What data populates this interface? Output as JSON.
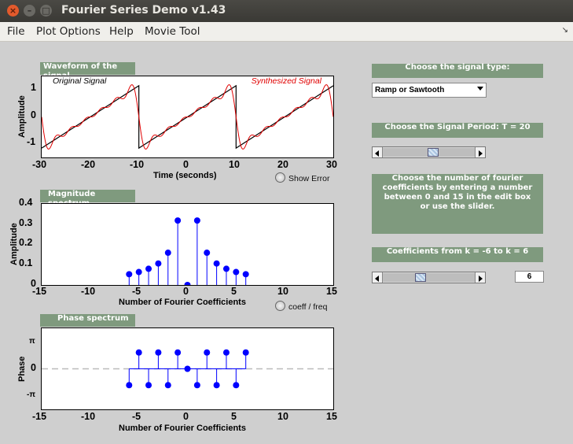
{
  "window": {
    "title": "Fourier Series Demo v1.43"
  },
  "menus": [
    "File",
    "Plot Options",
    "Help",
    "Movie Tool"
  ],
  "waveform": {
    "title": "Waveform of the signal",
    "legend_original": "Original Signal",
    "legend_synth": "Synthesized Signal",
    "xlabel": "Time (seconds)",
    "ylabel": "Amplitude",
    "xticks": [
      "-30",
      "-20",
      "-10",
      "0",
      "10",
      "20",
      "30"
    ],
    "yticks": [
      "1",
      "0",
      "-1"
    ],
    "show_error_label": "Show Error"
  },
  "magnitude": {
    "title": "Magnitude spectrum",
    "xlabel": "Number of Fourier Coefficients",
    "ylabel": "Amplitude",
    "xticks": [
      "-15",
      "-10",
      "-5",
      "0",
      "5",
      "10",
      "15"
    ],
    "yticks": [
      "0.4",
      "0.3",
      "0.2",
      "0.1",
      "0"
    ],
    "radio_label": "coeff / freq"
  },
  "phase": {
    "title": "Phase spectrum",
    "xlabel": "Number of Fourier Coefficients",
    "ylabel": "Phase",
    "xticks": [
      "-15",
      "-10",
      "-5",
      "0",
      "5",
      "10",
      "15"
    ],
    "yticks": [
      "π",
      "0",
      "-π"
    ]
  },
  "controls": {
    "signal_type_title": "Choose the signal type:",
    "signal_type_value": "Ramp or Sawtooth",
    "period_title": "Choose the Signal Period: T = 20",
    "period_slider_position": 0.55,
    "coef_instructions": "Choose the number of fourier coefficients by entering a number between 0 and 15 in the edit box or use the slider.",
    "coef_range_title": "Coefficients from k = -6  to  k = 6",
    "coef_slider_position": 0.4,
    "coef_value": "6"
  },
  "chart_data": [
    {
      "type": "line",
      "title": "Waveform of the signal",
      "xlabel": "Time (seconds)",
      "ylabel": "Amplitude",
      "xlim": [
        -30,
        30
      ],
      "ylim": [
        -1.3,
        1.3
      ],
      "period": 20,
      "series": [
        {
          "name": "Original Signal",
          "color": "#000000",
          "shape": "sawtooth"
        },
        {
          "name": "Synthesized Signal",
          "color": "#e00000",
          "harmonics": 6
        }
      ]
    },
    {
      "type": "stem",
      "title": "Magnitude spectrum",
      "xlabel": "Number of Fourier Coefficients",
      "ylabel": "Amplitude",
      "xlim": [
        -15,
        15
      ],
      "ylim": [
        0,
        0.4
      ],
      "color": "#0000ff",
      "x": [
        -6,
        -5,
        -4,
        -3,
        -2,
        -1,
        0,
        1,
        2,
        3,
        4,
        5,
        6
      ],
      "y": [
        0.053,
        0.064,
        0.08,
        0.106,
        0.159,
        0.318,
        0,
        0.318,
        0.159,
        0.106,
        0.08,
        0.064,
        0.053
      ]
    },
    {
      "type": "stem",
      "title": "Phase spectrum",
      "xlabel": "Number of Fourier Coefficients",
      "ylabel": "Phase",
      "xlim": [
        -15,
        15
      ],
      "ylim": [
        -3.9,
        3.9
      ],
      "color": "#0000ff",
      "x": [
        -6,
        -5,
        -4,
        -3,
        -2,
        -1,
        0,
        1,
        2,
        3,
        4,
        5,
        6
      ],
      "y": [
        -1.5708,
        1.5708,
        -1.5708,
        1.5708,
        -1.5708,
        1.5708,
        0,
        -1.5708,
        1.5708,
        -1.5708,
        1.5708,
        -1.5708,
        1.5708
      ]
    }
  ]
}
